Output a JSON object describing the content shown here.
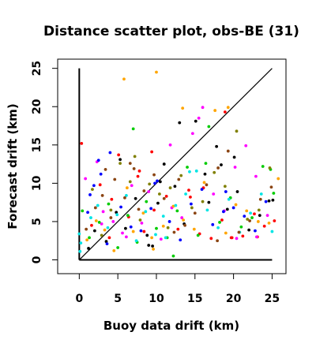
{
  "chart_data": {
    "type": "scatter",
    "title": "Distance scatter plot, obs-BE (31)",
    "xlabel": "Buoy data drift (km)",
    "ylabel": "Forecast drift (km)",
    "xlim": [
      -2.8,
      26.8
    ],
    "ylim": [
      -1.8,
      26.2
    ],
    "xticks": [
      0,
      5,
      10,
      15,
      20,
      25
    ],
    "yticks": [
      0,
      5,
      10,
      15,
      20,
      25
    ],
    "xtick_labels": [
      "0",
      "5",
      "10",
      "15",
      "20",
      "25"
    ],
    "ytick_labels": [
      "0",
      "5",
      "10",
      "15",
      "20",
      "25"
    ],
    "grid": false,
    "legend": "none",
    "reference_lines": [
      {
        "name": "identity",
        "x": [
          0,
          25
        ],
        "y": [
          0,
          25
        ]
      },
      {
        "name": "x-axis-line",
        "x": [
          0,
          25
        ],
        "y": [
          0,
          0
        ]
      },
      {
        "name": "y-axis-line",
        "x": [
          0,
          0
        ],
        "y": [
          0,
          25
        ]
      }
    ],
    "series": [
      {
        "color": "#000000",
        "x": [
          1.2,
          2.0,
          3.5,
          4.8,
          6.0,
          7.3,
          8.8,
          9.5,
          10.2,
          11.0,
          12.4,
          13.6,
          15.1,
          16.3,
          17.8,
          19.2,
          20.5,
          22.0,
          23.4,
          24.6,
          9.0,
          10.5,
          16.8,
          20.1,
          25.1,
          5.3,
          13.0,
          18.4
        ],
        "y": [
          1.5,
          3.8,
          2.4,
          6.2,
          4.1,
          8.0,
          3.2,
          1.8,
          7.4,
          12.5,
          9.6,
          4.7,
          18.1,
          11.2,
          14.8,
          6.6,
          8.9,
          3.9,
          5.8,
          7.7,
          1.9,
          10.2,
          7.5,
          13.4,
          7.8,
          13.1,
          17.9,
          12.4
        ]
      },
      {
        "color": "#ff0000",
        "x": [
          0.3,
          1.6,
          2.7,
          3.9,
          5.1,
          6.4,
          7.6,
          8.4,
          9.7,
          11.3,
          12.8,
          14.2,
          15.6,
          17.1,
          18.5,
          19.8,
          21.2,
          22.7,
          24.0,
          25.3,
          4.2,
          7.8,
          16.1,
          19.7,
          23.1,
          14.4,
          9.4,
          18.9
        ],
        "y": [
          15.2,
          4.5,
          9.8,
          2.9,
          13.7,
          5.6,
          10.9,
          3.7,
          6.5,
          8.3,
          4.0,
          9.1,
          3.4,
          2.8,
          5.2,
          2.9,
          3.1,
          6.0,
          4.4,
          5.1,
          7.9,
          11.6,
          9.4,
          2.9,
          3.0,
          8.2,
          14.1,
          19.3
        ]
      },
      {
        "color": "#ff00ff",
        "x": [
          0.8,
          2.3,
          3.1,
          4.4,
          5.6,
          6.8,
          8.1,
          9.0,
          10.6,
          12.0,
          13.3,
          14.7,
          16.0,
          17.4,
          18.8,
          20.2,
          21.6,
          23.0,
          24.4,
          2.9,
          6.1,
          11.8,
          15.5,
          20.4,
          22.9
        ],
        "y": [
          10.6,
          12.8,
          6.3,
          5.0,
          3.5,
          9.7,
          4.8,
          8.9,
          2.7,
          6.8,
          5.5,
          16.5,
          19.9,
          8.6,
          6.4,
          12.1,
          14.9,
          3.0,
          5.8,
          4.7,
          3.0,
          15.0,
          18.5,
          2.8,
          10.9
        ]
      },
      {
        "color": "#0000ff",
        "x": [
          1.4,
          1.9,
          2.8,
          3.6,
          4.0,
          5.4,
          6.7,
          8.0,
          9.3,
          10.1,
          11.7,
          13.1,
          14.5,
          15.9,
          17.3,
          18.7,
          20.0,
          21.4,
          22.8,
          24.2,
          1.1,
          2.5,
          19.0,
          9.8
        ],
        "y": [
          8.5,
          9.7,
          11.2,
          2.1,
          14.0,
          6.9,
          4.3,
          3.8,
          6.7,
          10.3,
          5.0,
          2.6,
          7.3,
          9.2,
          4.6,
          6.3,
          6.8,
          5.7,
          3.8,
          7.6,
          6.2,
          13.0,
          8.9,
          10.0
        ]
      },
      {
        "color": "#00cc00",
        "x": [
          0.4,
          1.3,
          2.6,
          3.8,
          5.0,
          6.3,
          7.5,
          8.7,
          10.0,
          11.4,
          12.7,
          14.0,
          15.4,
          16.8,
          18.2,
          19.6,
          21.0,
          22.4,
          23.8,
          25.2,
          7.0,
          12.2,
          16.4,
          24.8
        ],
        "y": [
          6.4,
          2.9,
          4.9,
          7.3,
          1.6,
          5.8,
          2.3,
          7.6,
          4.1,
          2.9,
          6.4,
          12.1,
          3.2,
          17.4,
          4.9,
          8.1,
          4.3,
          5.5,
          12.2,
          8.7,
          17.1,
          0.5,
          12.6,
          11.8
        ]
      },
      {
        "color": "#ffa500",
        "x": [
          1.0,
          2.2,
          3.3,
          4.5,
          5.8,
          7.0,
          8.3,
          9.6,
          10.9,
          12.2,
          13.5,
          14.9,
          16.2,
          17.6,
          19.0,
          20.3,
          21.7,
          23.2,
          24.6,
          6.2,
          10.0,
          13.4,
          19.3,
          25.8,
          9.4
        ],
        "y": [
          2.6,
          5.1,
          3.9,
          1.2,
          23.6,
          3.7,
          6.1,
          1.4,
          4.4,
          7.0,
          5.2,
          4.0,
          10.1,
          19.5,
          3.5,
          7.2,
          6.4,
          5.0,
          4.8,
          9.4,
          24.5,
          19.8,
          19.9,
          10.6,
          2.9
        ]
      },
      {
        "color": "#00e5e5",
        "x": [
          0.0,
          0.2,
          1.5,
          2.4,
          3.7,
          4.9,
          6.1,
          7.4,
          8.6,
          9.9,
          11.2,
          12.5,
          13.8,
          15.2,
          16.6,
          18.0,
          19.4,
          20.8,
          22.2,
          23.6,
          25.0,
          0.1,
          14.3,
          10.9
        ],
        "y": [
          3.4,
          2.2,
          5.5,
          7.1,
          4.2,
          5.9,
          8.4,
          2.5,
          6.3,
          3.3,
          2.9,
          7.1,
          8.6,
          11.6,
          6.5,
          4.2,
          7.9,
          3.6,
          6.1,
          8.6,
          3.7,
          1.1,
          11.5,
          5.7
        ]
      },
      {
        "color": "#8b4513",
        "x": [
          0.9,
          2.1,
          3.4,
          4.6,
          5.9,
          7.1,
          8.4,
          9.7,
          11.0,
          12.3,
          13.7,
          15.0,
          16.5,
          17.9,
          19.3,
          20.7,
          22.1,
          23.5,
          24.9,
          4.1,
          6.6,
          12.9,
          18.0,
          3.0,
          7.7
        ],
        "y": [
          4.0,
          6.8,
          11.8,
          10.5,
          8.1,
          11.9,
          9.0,
          11.1,
          8.0,
          3.6,
          4.5,
          6.1,
          9.8,
          2.5,
          14.2,
          3.6,
          5.1,
          7.9,
          9.5,
          5.5,
          12.6,
          10.5,
          12.0,
          8.4,
          6.6
        ]
      },
      {
        "color": "#808000",
        "x": [
          1.7,
          2.9,
          4.1,
          5.3,
          6.6,
          7.9,
          9.1,
          10.4,
          11.8,
          13.2,
          14.6,
          16.0,
          17.5,
          18.9,
          20.4,
          21.8,
          23.3,
          24.7,
          7.2,
          11.5
        ],
        "y": [
          9.2,
          3.2,
          6.5,
          12.6,
          10.2,
          5.2,
          9.9,
          8.6,
          9.4,
          11.0,
          6.8,
          7.6,
          11.4,
          9.6,
          16.8,
          5.3,
          6.5,
          12.0,
          13.5,
          4.2
        ]
      }
    ]
  }
}
